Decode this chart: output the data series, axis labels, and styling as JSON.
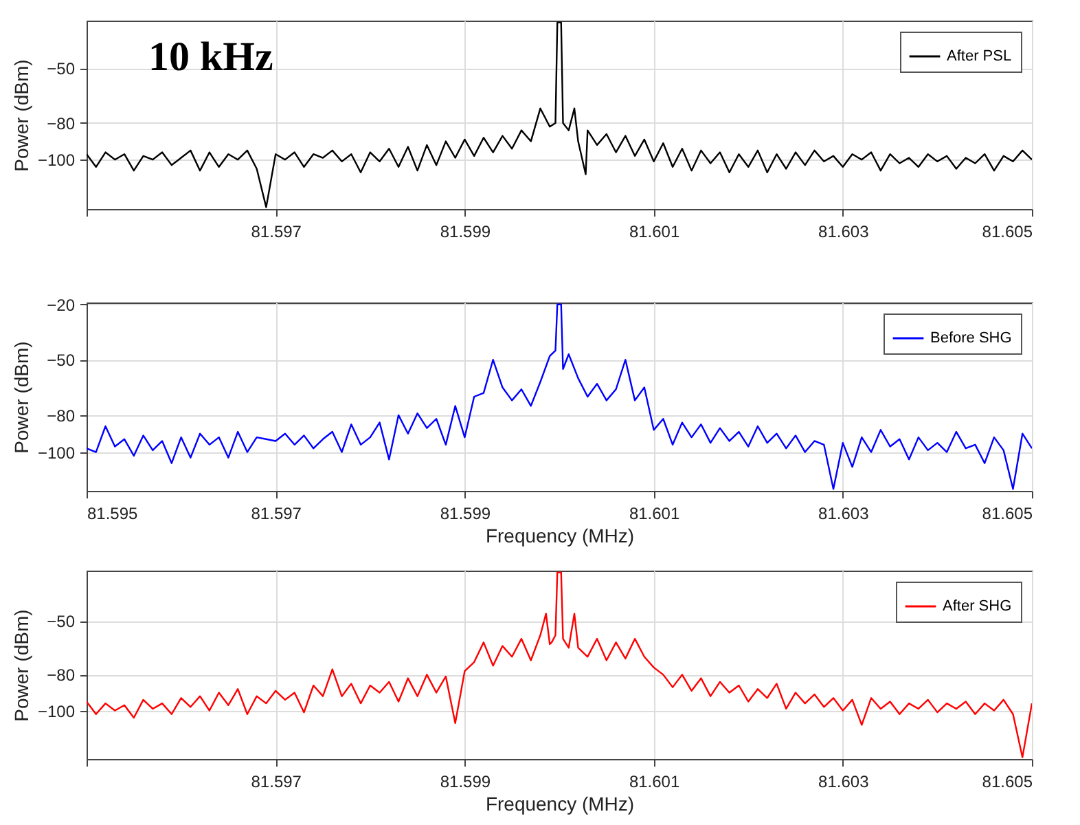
{
  "chart_data": [
    {
      "type": "line",
      "annotations": [
        "10 kHz"
      ],
      "ylabel": "Power (dBm)",
      "xlim": [
        81.595,
        81.605
      ],
      "ylim": [
        -127,
        -24
      ],
      "xticks": [
        {
          "value": 81.595,
          "label": null
        },
        81.597,
        81.599,
        81.601,
        81.603,
        81.605
      ],
      "yticks": [
        -100,
        -80,
        -50
      ],
      "grid": true,
      "legend": "top right",
      "series": [
        {
          "name": "After PSL",
          "color": "#000000",
          "x": [
            81.595,
            81.5951,
            81.5952,
            81.5953,
            81.5954,
            81.5955,
            81.5956,
            81.5957,
            81.5958,
            81.5959,
            81.596,
            81.5961,
            81.5962,
            81.5963,
            81.5964,
            81.5965,
            81.5966,
            81.5967,
            81.5968,
            81.5969,
            81.597,
            81.5971,
            81.5972,
            81.5973,
            81.5974,
            81.5975,
            81.5976,
            81.5977,
            81.5978,
            81.5979,
            81.598,
            81.5981,
            81.5982,
            81.5983,
            81.5984,
            81.5985,
            81.5986,
            81.5987,
            81.5988,
            81.5989,
            81.599,
            81.5991,
            81.5992,
            81.5993,
            81.5994,
            81.5995,
            81.5996,
            81.5997,
            81.5998,
            81.5999,
            81.59996,
            81.59998,
            81.60002,
            81.60004,
            81.6001,
            81.60016,
            81.6002,
            81.60028,
            81.6003,
            81.6004,
            81.6005,
            81.6006,
            81.6007,
            81.6008,
            81.6009,
            81.601,
            81.6011,
            81.6012,
            81.6013,
            81.6014,
            81.6015,
            81.6016,
            81.6017,
            81.6018,
            81.6019,
            81.602,
            81.6021,
            81.6022,
            81.6023,
            81.6024,
            81.6025,
            81.6026,
            81.6027,
            81.6028,
            81.6029,
            81.603,
            81.6031,
            81.6032,
            81.6033,
            81.6034,
            81.6035,
            81.6036,
            81.6037,
            81.6038,
            81.6039,
            81.604,
            81.6041,
            81.6042,
            81.6043,
            81.6044,
            81.6045,
            81.6046,
            81.6047,
            81.6048,
            81.6049,
            81.605
          ],
          "values": [
            -97,
            -104,
            -96,
            -100,
            -97,
            -106,
            -98,
            -100,
            -96,
            -103,
            -99,
            -95,
            -106,
            -96,
            -104,
            -97,
            -100,
            -95,
            -105,
            -126,
            -97,
            -100,
            -96,
            -104,
            -97,
            -99,
            -95,
            -101,
            -97,
            -107,
            -96,
            -101,
            -94,
            -104,
            -93,
            -106,
            -92,
            -103,
            -90,
            -99,
            -89,
            -98,
            -88,
            -96,
            -87,
            -94,
            -84,
            -90,
            -72,
            -82,
            -80,
            -25,
            -25,
            -80,
            -84,
            -72,
            -90,
            -108,
            -84,
            -92,
            -86,
            -96,
            -87,
            -98,
            -89,
            -101,
            -91,
            -104,
            -94,
            -106,
            -95,
            -102,
            -96,
            -107,
            -97,
            -104,
            -95,
            -107,
            -97,
            -105,
            -96,
            -103,
            -95,
            -101,
            -98,
            -104,
            -97,
            -100,
            -96,
            -106,
            -97,
            -102,
            -99,
            -104,
            -97,
            -101,
            -98,
            -105,
            -99,
            -102,
            -97,
            -106,
            -98,
            -101,
            -95,
            -100
          ]
        }
      ]
    },
    {
      "type": "line",
      "xlabel": "Frequency (MHz)",
      "ylabel": "Power (dBm)",
      "xlim": [
        81.595,
        81.605
      ],
      "ylim": [
        -121,
        -19
      ],
      "xticks": [
        81.595,
        81.597,
        81.599,
        81.601,
        81.603,
        81.605
      ],
      "yticks": [
        -100,
        -80,
        -50,
        -20
      ],
      "grid": true,
      "legend": "top right",
      "series": [
        {
          "name": "Before SHG",
          "color": "#0000ff",
          "x": [
            81.595,
            81.5951,
            81.5952,
            81.5953,
            81.5954,
            81.5955,
            81.5956,
            81.5957,
            81.5958,
            81.5959,
            81.596,
            81.5961,
            81.5962,
            81.5963,
            81.5964,
            81.5965,
            81.5966,
            81.5967,
            81.5968,
            81.5969,
            81.597,
            81.5971,
            81.5972,
            81.5973,
            81.5974,
            81.5975,
            81.5976,
            81.5977,
            81.5978,
            81.5979,
            81.598,
            81.5981,
            81.5982,
            81.5983,
            81.5984,
            81.5985,
            81.5986,
            81.5987,
            81.5988,
            81.5989,
            81.599,
            81.5991,
            81.5992,
            81.5993,
            81.5994,
            81.5995,
            81.5996,
            81.5997,
            81.5998,
            81.5999,
            81.59996,
            81.59998,
            81.60002,
            81.60004,
            81.6001,
            81.6002,
            81.6003,
            81.6004,
            81.6005,
            81.6006,
            81.6007,
            81.6008,
            81.6009,
            81.601,
            81.6011,
            81.6012,
            81.6013,
            81.6014,
            81.6015,
            81.6016,
            81.6017,
            81.6018,
            81.6019,
            81.602,
            81.6021,
            81.6022,
            81.6023,
            81.6024,
            81.6025,
            81.6026,
            81.6027,
            81.6028,
            81.6029,
            81.603,
            81.6031,
            81.6032,
            81.6033,
            81.6034,
            81.6035,
            81.6036,
            81.6037,
            81.6038,
            81.6039,
            81.604,
            81.6041,
            81.6042,
            81.6043,
            81.6044,
            81.6045,
            81.6046,
            81.6047,
            81.6048,
            81.6049,
            81.605
          ],
          "values": [
            -98,
            -100,
            -86,
            -97,
            -93,
            -102,
            -91,
            -99,
            -94,
            -106,
            -92,
            -103,
            -90,
            -96,
            -92,
            -103,
            -89,
            -100,
            -92,
            -93,
            -94,
            -90,
            -96,
            -91,
            -98,
            -93,
            -89,
            -100,
            -85,
            -96,
            -92,
            -84,
            -104,
            -80,
            -90,
            -79,
            -87,
            -82,
            -96,
            -75,
            -92,
            -70,
            -68,
            -50,
            -65,
            -72,
            -66,
            -75,
            -62,
            -48,
            -45,
            -20,
            -20,
            -55,
            -47,
            -60,
            -70,
            -63,
            -72,
            -66,
            -50,
            -72,
            -65,
            -88,
            -82,
            -96,
            -84,
            -92,
            -85,
            -95,
            -87,
            -94,
            -89,
            -97,
            -86,
            -95,
            -90,
            -98,
            -91,
            -100,
            -94,
            -96,
            -120,
            -95,
            -108,
            -92,
            -100,
            -88,
            -97,
            -93,
            -104,
            -92,
            -99,
            -95,
            -100,
            -89,
            -98,
            -96,
            -106,
            -92,
            -99,
            -120,
            -90,
            -98
          ]
        }
      ]
    },
    {
      "type": "line",
      "xlabel": "Frequency (MHz)",
      "ylabel": "Power (dBm)",
      "xlim": [
        81.595,
        81.605
      ],
      "ylim": [
        -127,
        -22
      ],
      "xticks": [
        {
          "value": 81.595,
          "label": null
        },
        81.597,
        81.599,
        81.601,
        81.603,
        81.605
      ],
      "yticks": [
        -100,
        -80,
        -50
      ],
      "grid": true,
      "legend": "top right",
      "series": [
        {
          "name": "After SHG",
          "color": "#ff0000",
          "x": [
            81.595,
            81.5951,
            81.5952,
            81.5953,
            81.5954,
            81.5955,
            81.5956,
            81.5957,
            81.5958,
            81.5959,
            81.596,
            81.5961,
            81.5962,
            81.5963,
            81.5964,
            81.5965,
            81.5966,
            81.5967,
            81.5968,
            81.5969,
            81.597,
            81.5971,
            81.5972,
            81.5973,
            81.5974,
            81.5975,
            81.5976,
            81.5977,
            81.5978,
            81.5979,
            81.598,
            81.5981,
            81.5982,
            81.5983,
            81.5984,
            81.5985,
            81.5986,
            81.5987,
            81.5988,
            81.5989,
            81.599,
            81.5991,
            81.5992,
            81.5993,
            81.5994,
            81.5995,
            81.5996,
            81.5997,
            81.5998,
            81.59986,
            81.5999,
            81.59992,
            81.59996,
            81.59998,
            81.60002,
            81.60004,
            81.6001,
            81.60016,
            81.6002,
            81.6003,
            81.6004,
            81.6005,
            81.6006,
            81.6007,
            81.6008,
            81.6009,
            81.601,
            81.6011,
            81.6012,
            81.6013,
            81.6014,
            81.6015,
            81.6016,
            81.6017,
            81.6018,
            81.6019,
            81.602,
            81.6021,
            81.6022,
            81.6023,
            81.6024,
            81.6025,
            81.6026,
            81.6027,
            81.6028,
            81.6029,
            81.603,
            81.6031,
            81.6032,
            81.6033,
            81.6034,
            81.6035,
            81.6036,
            81.6037,
            81.6038,
            81.6039,
            81.604,
            81.6041,
            81.6042,
            81.6043,
            81.6044,
            81.6045,
            81.6046,
            81.6047,
            81.6048,
            81.6049,
            81.605
          ],
          "values": [
            -95,
            -102,
            -96,
            -100,
            -97,
            -104,
            -94,
            -99,
            -96,
            -102,
            -93,
            -98,
            -92,
            -100,
            -90,
            -97,
            -88,
            -102,
            -92,
            -96,
            -89,
            -94,
            -90,
            -101,
            -86,
            -92,
            -77,
            -92,
            -85,
            -96,
            -86,
            -90,
            -84,
            -95,
            -82,
            -92,
            -80,
            -90,
            -81,
            -107,
            -78,
            -73,
            -62,
            -75,
            -64,
            -70,
            -60,
            -72,
            -58,
            -46,
            -63,
            -62,
            -58,
            -23,
            -23,
            -60,
            -65,
            -46,
            -65,
            -70,
            -60,
            -72,
            -62,
            -71,
            -60,
            -70,
            -76,
            -80,
            -87,
            -80,
            -89,
            -82,
            -92,
            -84,
            -90,
            -86,
            -95,
            -88,
            -93,
            -85,
            -99,
            -90,
            -96,
            -91,
            -98,
            -93,
            -100,
            -94,
            -108,
            -93,
            -99,
            -95,
            -102,
            -96,
            -99,
            -94,
            -101,
            -96,
            -99,
            -95,
            -102,
            -96,
            -100,
            -94,
            -102,
            -126,
            -96
          ]
        }
      ]
    }
  ]
}
